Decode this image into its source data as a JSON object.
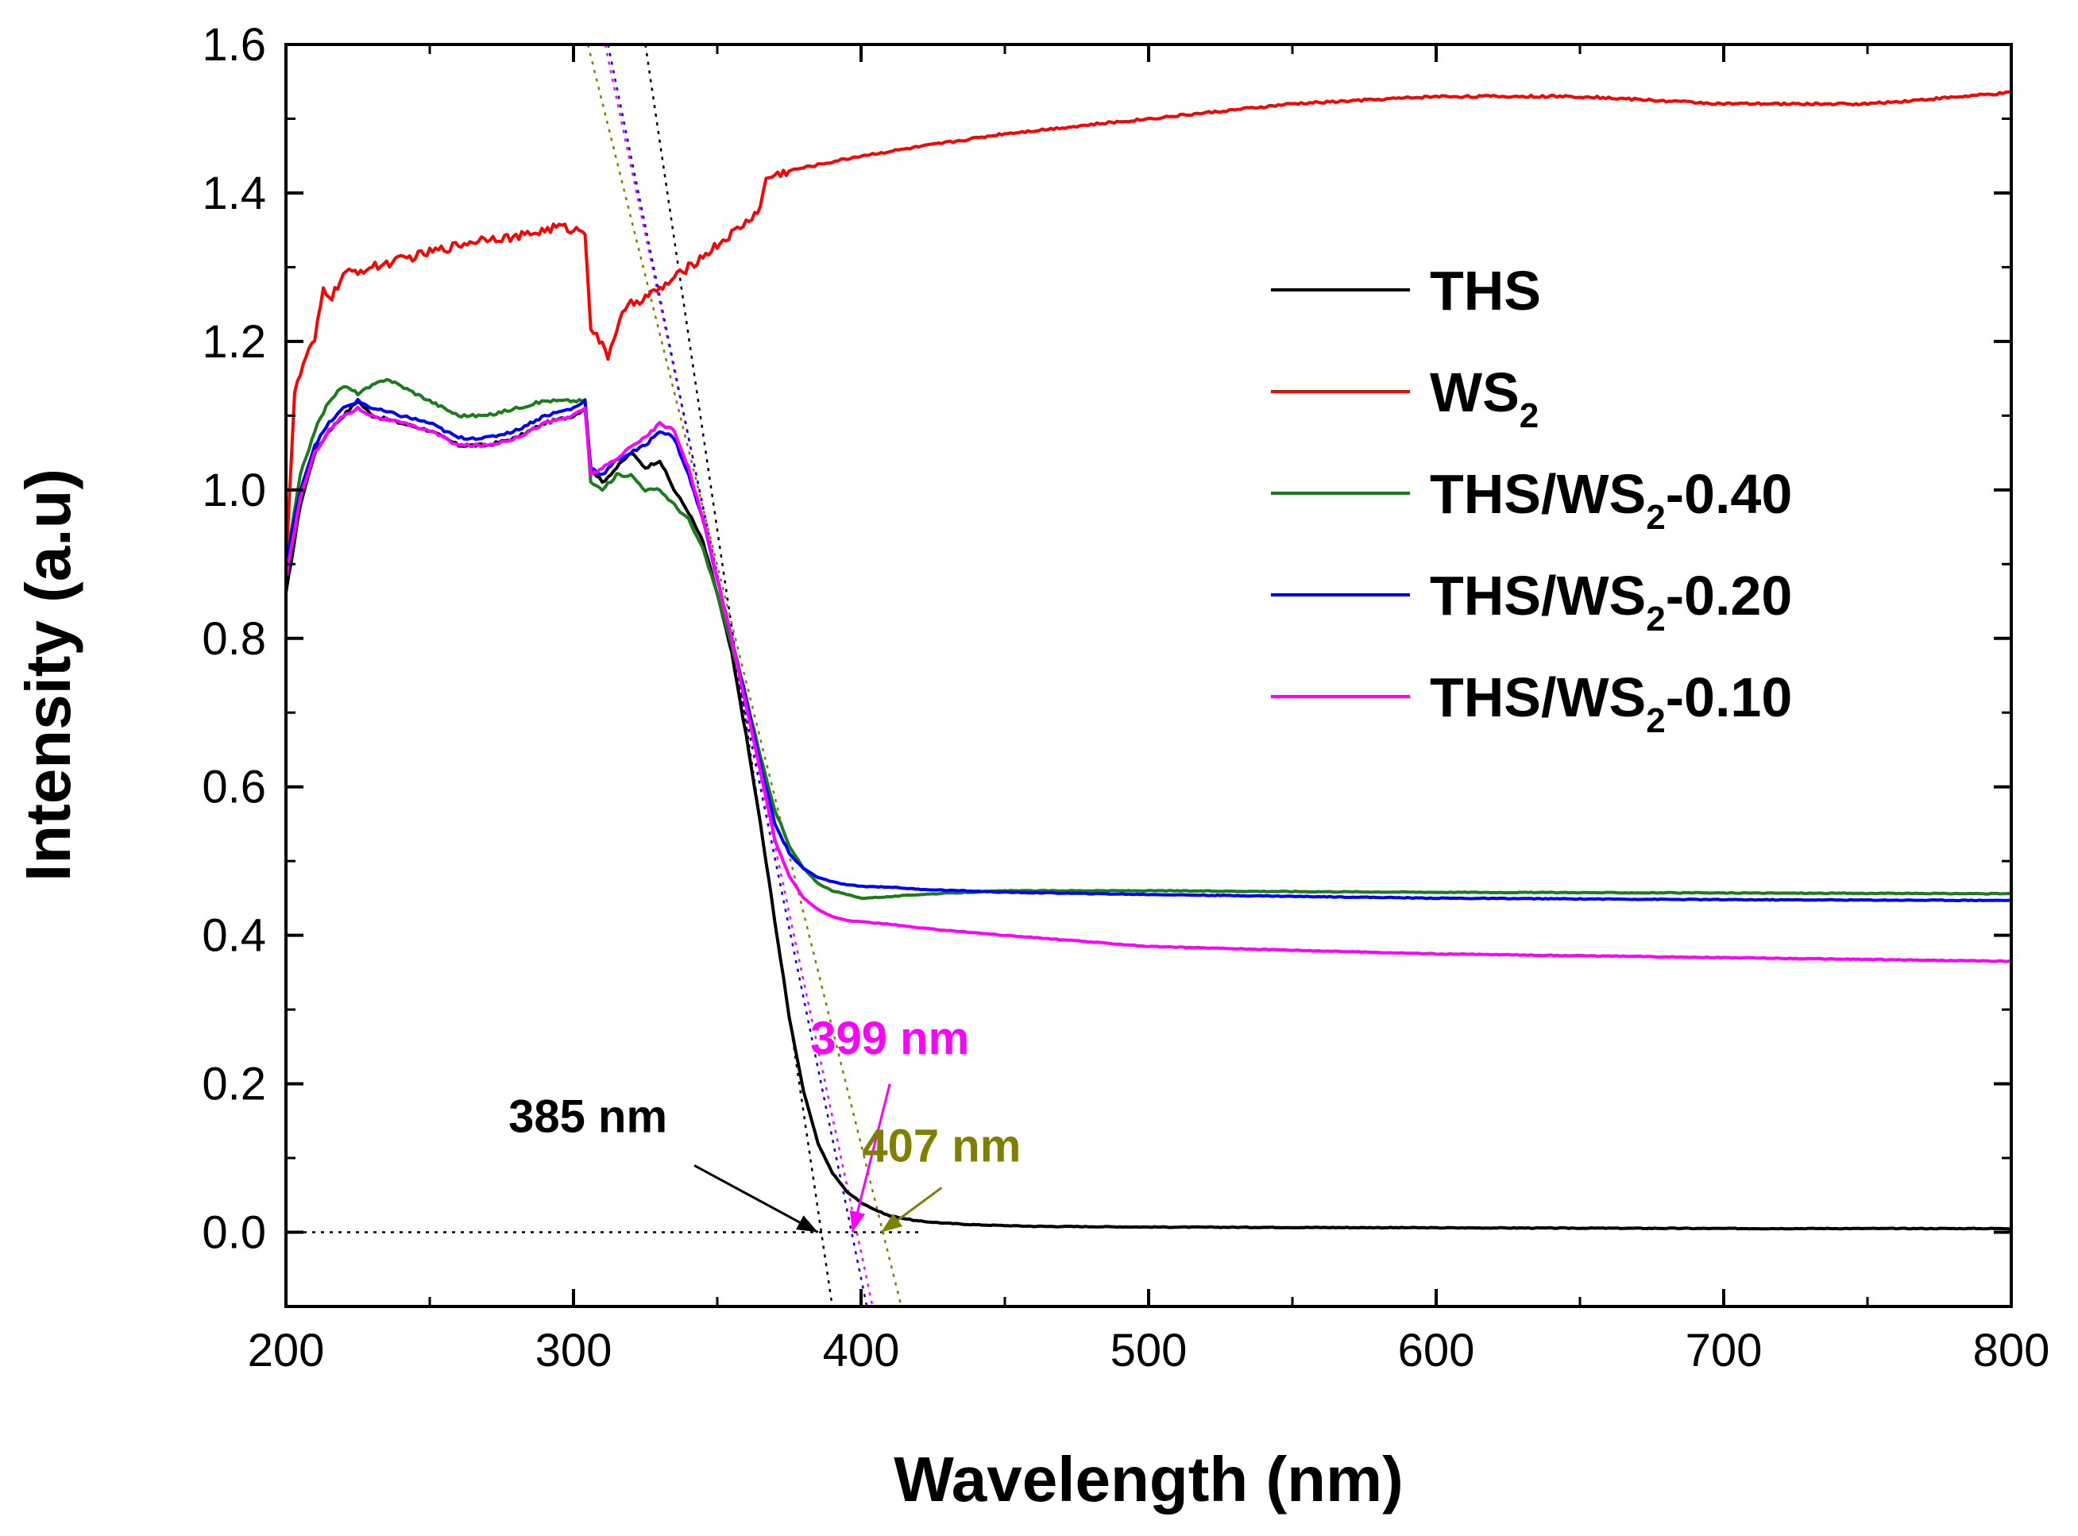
{
  "chart_data": {
    "type": "line",
    "title": "",
    "xlabel": "Wavelength (nm)",
    "ylabel": "Intensity (a.u)",
    "xlim": [
      200,
      800
    ],
    "ylim": [
      -0.1,
      1.6
    ],
    "xticks": [
      200,
      300,
      400,
      500,
      600,
      700,
      800
    ],
    "xtick_labels": [
      "200",
      "300",
      "400",
      "500",
      "600",
      "700",
      "800"
    ],
    "yticks": [
      0.0,
      0.2,
      0.4,
      0.6,
      0.8,
      1.0,
      1.2,
      1.4,
      1.6
    ],
    "ytick_labels": [
      "0.0",
      "0.2",
      "0.4",
      "0.6",
      "0.8",
      "1.0",
      "1.2",
      "1.4",
      "1.6"
    ],
    "legend_position": "right",
    "series": [
      {
        "name": "THS",
        "label_main": "THS",
        "label_sub": "",
        "label_suffix": "",
        "color": "#000000",
        "x": [
          200,
          205,
          210,
          215,
          220,
          225,
          230,
          240,
          250,
          260,
          270,
          280,
          290,
          300,
          304,
          306,
          310,
          315,
          320,
          325,
          330,
          335,
          340,
          345,
          350,
          355,
          360,
          365,
          370,
          375,
          380,
          385,
          390,
          395,
          400,
          405,
          410,
          420,
          430,
          440,
          460,
          500,
          600,
          700,
          800
        ],
        "y": [
          0.86,
          0.98,
          1.05,
          1.08,
          1.1,
          1.12,
          1.1,
          1.09,
          1.08,
          1.06,
          1.06,
          1.07,
          1.09,
          1.1,
          1.11,
          1.03,
          1.01,
          1.03,
          1.05,
          1.03,
          1.04,
          1.0,
          0.97,
          0.93,
          0.86,
          0.78,
          0.67,
          0.55,
          0.42,
          0.29,
          0.19,
          0.12,
          0.08,
          0.055,
          0.04,
          0.03,
          0.022,
          0.015,
          0.012,
          0.01,
          0.008,
          0.007,
          0.006,
          0.005,
          0.005
        ]
      },
      {
        "name": "WS2",
        "label_main": "WS",
        "label_sub": "2",
        "label_suffix": "",
        "color": "#ff0000",
        "x": [
          200,
          203,
          207,
          210,
          213,
          216,
          220,
          230,
          240,
          250,
          260,
          270,
          280,
          290,
          295,
          300,
          304,
          306,
          309,
          312,
          316,
          320,
          330,
          340,
          350,
          360,
          365,
          367,
          375,
          400,
          450,
          500,
          550,
          600,
          650,
          700,
          750,
          800
        ],
        "y": [
          0.9,
          1.13,
          1.18,
          1.2,
          1.27,
          1.26,
          1.29,
          1.3,
          1.31,
          1.32,
          1.33,
          1.34,
          1.34,
          1.35,
          1.355,
          1.35,
          1.35,
          1.22,
          1.2,
          1.18,
          1.23,
          1.25,
          1.27,
          1.3,
          1.33,
          1.36,
          1.38,
          1.42,
          1.43,
          1.45,
          1.48,
          1.5,
          1.52,
          1.53,
          1.53,
          1.52,
          1.52,
          1.535
        ]
      },
      {
        "name": "THS/WS2-0.40",
        "label_main": "THS/WS",
        "label_sub": "2",
        "label_suffix": "-0.40",
        "color": "#1a7d1a",
        "x": [
          200,
          205,
          210,
          215,
          220,
          225,
          230,
          235,
          240,
          250,
          260,
          270,
          280,
          290,
          300,
          304,
          306,
          310,
          315,
          320,
          325,
          330,
          335,
          340,
          345,
          350,
          355,
          360,
          365,
          370,
          375,
          380,
          385,
          390,
          395,
          400,
          410,
          420,
          450,
          500,
          600,
          700,
          800
        ],
        "y": [
          0.9,
          1.02,
          1.08,
          1.12,
          1.14,
          1.13,
          1.14,
          1.15,
          1.14,
          1.12,
          1.1,
          1.1,
          1.11,
          1.12,
          1.12,
          1.12,
          1.01,
          1.0,
          1.02,
          1.02,
          1.0,
          1.0,
          0.98,
          0.96,
          0.92,
          0.86,
          0.79,
          0.72,
          0.64,
          0.57,
          0.52,
          0.49,
          0.47,
          0.46,
          0.455,
          0.45,
          0.452,
          0.455,
          0.46,
          0.46,
          0.458,
          0.457,
          0.456
        ]
      },
      {
        "name": "THS/WS2-0.20",
        "label_main": "THS/WS",
        "label_sub": "2",
        "label_suffix": "-0.20",
        "color": "#0000ff",
        "x": [
          200,
          205,
          210,
          215,
          220,
          225,
          230,
          240,
          250,
          260,
          270,
          280,
          290,
          300,
          304,
          306,
          310,
          315,
          320,
          325,
          330,
          335,
          340,
          345,
          350,
          355,
          360,
          365,
          370,
          375,
          380,
          385,
          390,
          395,
          400,
          410,
          420,
          450,
          500,
          600,
          700,
          800
        ],
        "y": [
          0.9,
          1.0,
          1.06,
          1.09,
          1.11,
          1.12,
          1.11,
          1.1,
          1.09,
          1.07,
          1.07,
          1.08,
          1.1,
          1.11,
          1.12,
          1.03,
          1.02,
          1.04,
          1.05,
          1.06,
          1.08,
          1.07,
          1.02,
          0.96,
          0.88,
          0.8,
          0.72,
          0.63,
          0.55,
          0.51,
          0.49,
          0.478,
          0.472,
          0.468,
          0.466,
          0.465,
          0.462,
          0.458,
          0.455,
          0.45,
          0.448,
          0.447
        ]
      },
      {
        "name": "THS/WS2-0.10",
        "label_main": "THS/WS",
        "label_sub": "2",
        "label_suffix": "-0.10",
        "color": "#ff00ff",
        "x": [
          200,
          205,
          210,
          215,
          220,
          225,
          230,
          240,
          250,
          260,
          270,
          280,
          290,
          300,
          304,
          306,
          310,
          315,
          320,
          325,
          330,
          335,
          340,
          345,
          350,
          355,
          360,
          365,
          370,
          375,
          380,
          385,
          390,
          395,
          400,
          410,
          420,
          450,
          500,
          600,
          700,
          800
        ],
        "y": [
          0.88,
          0.99,
          1.05,
          1.08,
          1.1,
          1.11,
          1.1,
          1.09,
          1.08,
          1.06,
          1.06,
          1.07,
          1.09,
          1.1,
          1.11,
          1.02,
          1.03,
          1.04,
          1.06,
          1.07,
          1.09,
          1.08,
          1.03,
          0.96,
          0.88,
          0.8,
          0.71,
          0.62,
          0.53,
          0.48,
          0.45,
          0.435,
          0.425,
          0.42,
          0.418,
          0.415,
          0.41,
          0.4,
          0.385,
          0.375,
          0.37,
          0.365
        ]
      }
    ],
    "tangent_lines": [
      {
        "name": "THS",
        "color": "#000000",
        "x": [
          325,
          390
        ],
        "y": [
          1.6,
          -0.1
        ]
      },
      {
        "name": "THS/WS2-0.10",
        "color": "#ff00ff",
        "x": [
          311,
          404
        ],
        "y": [
          1.6,
          -0.1
        ]
      },
      {
        "name": "THS/WS2-0.20",
        "color": "#0000ff",
        "x": [
          312,
          402
        ],
        "y": [
          1.6,
          -0.1
        ]
      },
      {
        "name": "THS/WS2-0.40",
        "color": "#808000",
        "x": [
          305,
          414
        ],
        "y": [
          1.6,
          -0.1
        ]
      }
    ],
    "baseline": {
      "y": 0.0,
      "x": [
        200,
        420
      ],
      "color": "#000000"
    },
    "annotations": [
      {
        "text": "385 nm",
        "color": "#000000",
        "text_x": 305,
        "text_y": 0.135,
        "arrow_from": [
          342,
          0.09
        ],
        "arrow_to": [
          385,
          0.0
        ]
      },
      {
        "text": "399 nm",
        "color": "#ff00ff",
        "text_x": 410,
        "text_y": 0.24,
        "arrow_from": [
          410,
          0.2
        ],
        "arrow_to": [
          397,
          0.0
        ]
      },
      {
        "text": "407 nm",
        "color": "#808000",
        "text_x": 428,
        "text_y": 0.095,
        "arrow_from": [
          428,
          0.06
        ],
        "arrow_to": [
          407,
          0.0
        ]
      }
    ]
  }
}
